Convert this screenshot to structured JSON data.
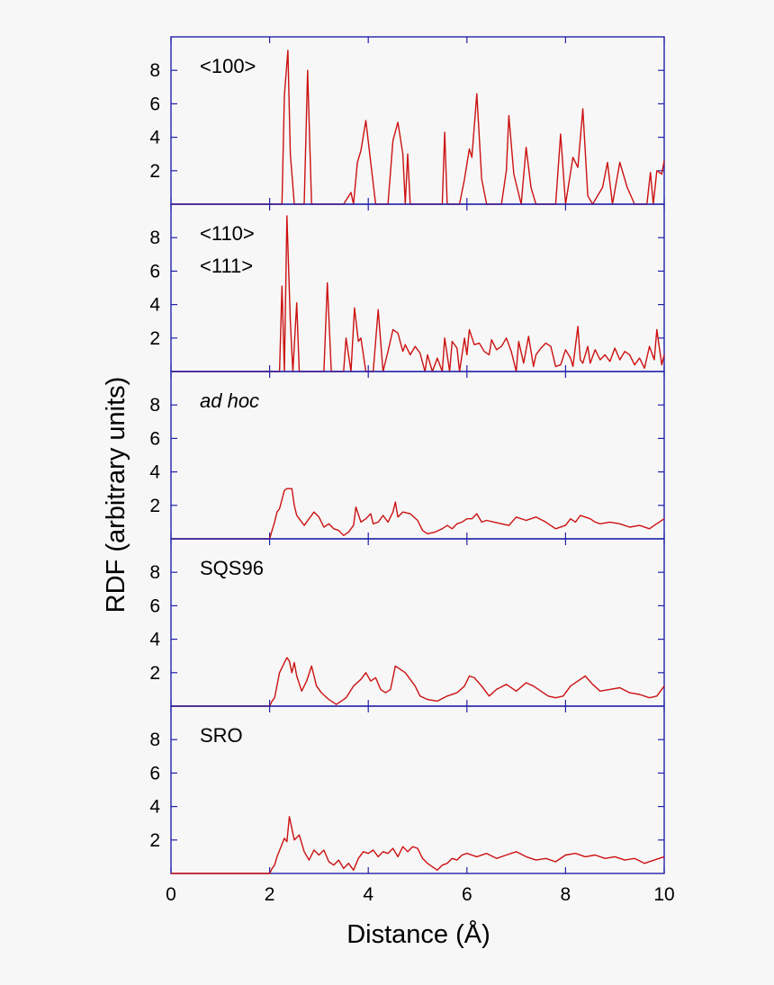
{
  "chart_data": {
    "type": "line",
    "ylabel": "RDF (arbitrary units)",
    "xlabel": "Distance (Å)",
    "xlim": [
      0,
      10
    ],
    "ylim": [
      0,
      10
    ],
    "x_ticks": [
      "0",
      "2",
      "4",
      "6",
      "8",
      "10"
    ],
    "y_ticks": [
      "2",
      "4",
      "6",
      "8"
    ],
    "colors": {
      "line": "#cc1111",
      "axis": "#2222aa"
    },
    "panels": [
      {
        "labels": [
          "<100>"
        ],
        "italic": false,
        "x": [
          0,
          2.25,
          2.3,
          2.37,
          2.42,
          2.5,
          2.7,
          2.77,
          2.85,
          3.5,
          3.65,
          3.7,
          3.78,
          3.85,
          3.95,
          4.05,
          4.15,
          4.4,
          4.5,
          4.6,
          4.7,
          4.75,
          4.8,
          4.85,
          4.9,
          5.5,
          5.55,
          5.6,
          5.65,
          5.85,
          5.95,
          6.05,
          6.1,
          6.2,
          6.3,
          6.4,
          6.7,
          6.8,
          6.85,
          6.95,
          7.1,
          7.2,
          7.3,
          7.4,
          7.8,
          7.9,
          8.0,
          8.15,
          8.25,
          8.35,
          8.45,
          8.55,
          8.75,
          8.85,
          8.95,
          9.1,
          9.25,
          9.4,
          9.65,
          9.72,
          9.78,
          9.85,
          9.95,
          10.0
        ],
        "y": [
          0,
          0,
          6.5,
          9.2,
          3.0,
          0,
          0,
          8.0,
          0,
          0,
          0.7,
          0,
          2.5,
          3.2,
          5.0,
          2.5,
          0,
          0,
          3.8,
          4.9,
          3.0,
          0,
          3.0,
          0,
          0,
          0,
          4.3,
          0,
          0,
          0,
          1.5,
          3.3,
          2.8,
          6.6,
          1.5,
          0,
          0,
          2.0,
          5.3,
          1.8,
          0,
          3.4,
          1.0,
          0,
          0,
          4.2,
          0,
          2.8,
          2.2,
          5.7,
          0.5,
          0,
          1.0,
          2.5,
          0,
          2.5,
          1.0,
          0,
          0,
          1.9,
          0,
          2.0,
          1.8,
          2.6
        ]
      },
      {
        "labels": [
          "<110>",
          "<111>"
        ],
        "italic": false,
        "x": [
          0,
          2.2,
          2.25,
          2.3,
          2.35,
          2.42,
          2.47,
          2.55,
          2.6,
          3.1,
          3.17,
          3.25,
          3.5,
          3.55,
          3.65,
          3.72,
          3.8,
          3.85,
          3.95,
          4.1,
          4.2,
          4.3,
          4.4,
          4.5,
          4.6,
          4.7,
          4.75,
          4.85,
          4.95,
          5.05,
          5.15,
          5.2,
          5.3,
          5.4,
          5.5,
          5.55,
          5.65,
          5.7,
          5.8,
          5.85,
          5.95,
          6.0,
          6.05,
          6.15,
          6.25,
          6.35,
          6.45,
          6.5,
          6.6,
          6.7,
          6.8,
          6.9,
          7.0,
          7.05,
          7.15,
          7.25,
          7.35,
          7.4,
          7.5,
          7.6,
          7.7,
          7.8,
          7.9,
          8.0,
          8.1,
          8.15,
          8.25,
          8.3,
          8.35,
          8.45,
          8.5,
          8.6,
          8.7,
          8.8,
          8.9,
          9.0,
          9.1,
          9.2,
          9.3,
          9.4,
          9.5,
          9.6,
          9.7,
          9.8,
          9.85,
          9.95,
          10.0
        ],
        "y": [
          0,
          0,
          5.1,
          0,
          9.3,
          3.0,
          0,
          4.1,
          0,
          0,
          5.3,
          0,
          0,
          2.0,
          0,
          3.8,
          1.8,
          2.0,
          0,
          0,
          3.7,
          0,
          1.2,
          2.5,
          2.3,
          1.2,
          1.6,
          1.0,
          1.5,
          1.1,
          0,
          1.0,
          0,
          0.8,
          0,
          2.0,
          0,
          1.8,
          1.4,
          0,
          2.0,
          1.0,
          2.5,
          1.6,
          1.7,
          1.2,
          1.0,
          1.9,
          1.3,
          1.5,
          2.0,
          1.2,
          0,
          1.8,
          0.5,
          2.1,
          0.3,
          1.0,
          1.4,
          1.7,
          1.5,
          0.3,
          0.4,
          1.3,
          0.8,
          0.3,
          2.7,
          0.7,
          0.5,
          1.5,
          0.5,
          1.3,
          0.7,
          1.0,
          0.6,
          1.4,
          0.7,
          1.2,
          1.0,
          0.4,
          0.8,
          0.2,
          1.5,
          0.7,
          2.5,
          0.4,
          1.0
        ]
      },
      {
        "labels": [
          "ad hoc"
        ],
        "italic": true,
        "x": [
          0,
          2.0,
          2.05,
          2.1,
          2.15,
          2.2,
          2.3,
          2.35,
          2.45,
          2.5,
          2.55,
          2.6,
          2.7,
          2.8,
          2.9,
          3.0,
          3.1,
          3.2,
          3.3,
          3.4,
          3.5,
          3.6,
          3.7,
          3.75,
          3.85,
          3.95,
          4.05,
          4.1,
          4.2,
          4.3,
          4.4,
          4.5,
          4.55,
          4.6,
          4.7,
          4.85,
          5.0,
          5.1,
          5.2,
          5.35,
          5.5,
          5.6,
          5.7,
          5.8,
          5.9,
          6.0,
          6.1,
          6.2,
          6.3,
          6.4,
          6.55,
          6.7,
          6.85,
          7.0,
          7.2,
          7.4,
          7.6,
          7.8,
          8.0,
          8.1,
          8.2,
          8.3,
          8.4,
          8.5,
          8.6,
          8.7,
          8.9,
          9.1,
          9.3,
          9.5,
          9.7,
          9.8,
          9.9,
          10.0
        ],
        "y": [
          0,
          0,
          0.5,
          1.0,
          1.6,
          1.8,
          2.9,
          3.0,
          3.0,
          2.0,
          1.4,
          1.2,
          0.8,
          1.2,
          1.6,
          1.3,
          0.7,
          0.9,
          0.6,
          0.5,
          0.2,
          0.4,
          0.8,
          1.9,
          1.0,
          1.2,
          1.5,
          0.9,
          1.0,
          1.4,
          1.0,
          1.6,
          2.2,
          1.3,
          1.6,
          1.5,
          1.1,
          0.5,
          0.3,
          0.4,
          0.6,
          0.8,
          0.6,
          0.9,
          1.0,
          1.2,
          1.2,
          1.5,
          1.0,
          1.1,
          1.0,
          0.9,
          0.8,
          1.3,
          1.1,
          1.3,
          1.0,
          0.6,
          0.8,
          1.2,
          1.0,
          1.4,
          1.3,
          1.2,
          1.0,
          0.9,
          1.0,
          0.9,
          0.7,
          0.8,
          0.6,
          0.8,
          1.0,
          1.2
        ]
      },
      {
        "labels": [
          "SQS96"
        ],
        "italic": false,
        "x": [
          0,
          2.0,
          2.05,
          2.1,
          2.2,
          2.3,
          2.35,
          2.4,
          2.45,
          2.5,
          2.55,
          2.65,
          2.75,
          2.85,
          2.95,
          3.05,
          3.2,
          3.35,
          3.45,
          3.55,
          3.7,
          3.85,
          3.95,
          4.05,
          4.15,
          4.25,
          4.35,
          4.45,
          4.55,
          4.65,
          4.75,
          4.85,
          4.95,
          5.05,
          5.2,
          5.4,
          5.6,
          5.8,
          5.95,
          6.05,
          6.15,
          6.3,
          6.45,
          6.6,
          6.8,
          7.0,
          7.2,
          7.35,
          7.5,
          7.65,
          7.8,
          7.95,
          8.1,
          8.25,
          8.4,
          8.55,
          8.7,
          8.9,
          9.1,
          9.3,
          9.5,
          9.7,
          9.85,
          10.0
        ],
        "y": [
          0,
          0,
          0.3,
          0.5,
          2.0,
          2.6,
          2.9,
          2.7,
          2.0,
          2.6,
          1.8,
          0.9,
          1.5,
          2.4,
          1.2,
          0.8,
          0.4,
          0.1,
          0.3,
          0.5,
          1.2,
          1.6,
          2.0,
          1.5,
          1.7,
          1.0,
          0.8,
          1.0,
          2.4,
          2.2,
          2.0,
          1.6,
          1.2,
          0.6,
          0.4,
          0.3,
          0.6,
          0.8,
          1.2,
          1.8,
          1.7,
          1.2,
          0.6,
          1.0,
          1.3,
          0.9,
          1.4,
          1.2,
          0.9,
          0.6,
          0.5,
          0.6,
          1.2,
          1.5,
          1.8,
          1.3,
          0.9,
          1.0,
          1.1,
          0.8,
          0.7,
          0.5,
          0.6,
          1.2
        ]
      },
      {
        "labels": [
          "SRO"
        ],
        "italic": false,
        "x": [
          0,
          2.0,
          2.05,
          2.1,
          2.15,
          2.3,
          2.35,
          2.4,
          2.5,
          2.6,
          2.7,
          2.8,
          2.9,
          3.0,
          3.1,
          3.2,
          3.3,
          3.4,
          3.5,
          3.6,
          3.7,
          3.8,
          3.9,
          4.0,
          4.1,
          4.2,
          4.3,
          4.4,
          4.5,
          4.6,
          4.7,
          4.8,
          4.9,
          5.0,
          5.1,
          5.2,
          5.3,
          5.4,
          5.5,
          5.6,
          5.7,
          5.8,
          5.9,
          6.0,
          6.2,
          6.4,
          6.6,
          6.8,
          7.0,
          7.2,
          7.4,
          7.6,
          7.8,
          8.0,
          8.2,
          8.4,
          8.6,
          8.8,
          9.0,
          9.2,
          9.4,
          9.6,
          9.8,
          10.0
        ],
        "y": [
          0,
          0,
          0.3,
          0.5,
          1.0,
          2.1,
          1.9,
          3.4,
          2.0,
          2.3,
          1.3,
          0.8,
          1.4,
          1.1,
          1.4,
          0.7,
          0.5,
          0.8,
          0.3,
          0.6,
          0.2,
          0.9,
          1.3,
          1.2,
          1.4,
          1.0,
          1.3,
          1.2,
          1.5,
          1.0,
          1.6,
          1.3,
          1.6,
          1.5,
          0.9,
          0.6,
          0.4,
          0.2,
          0.5,
          0.6,
          0.9,
          0.8,
          1.1,
          1.2,
          1.0,
          1.2,
          0.9,
          1.1,
          1.3,
          1.0,
          0.8,
          0.9,
          0.7,
          1.1,
          1.2,
          1.0,
          1.1,
          0.9,
          1.0,
          0.8,
          0.9,
          0.6,
          0.8,
          1.0
        ]
      }
    ]
  }
}
